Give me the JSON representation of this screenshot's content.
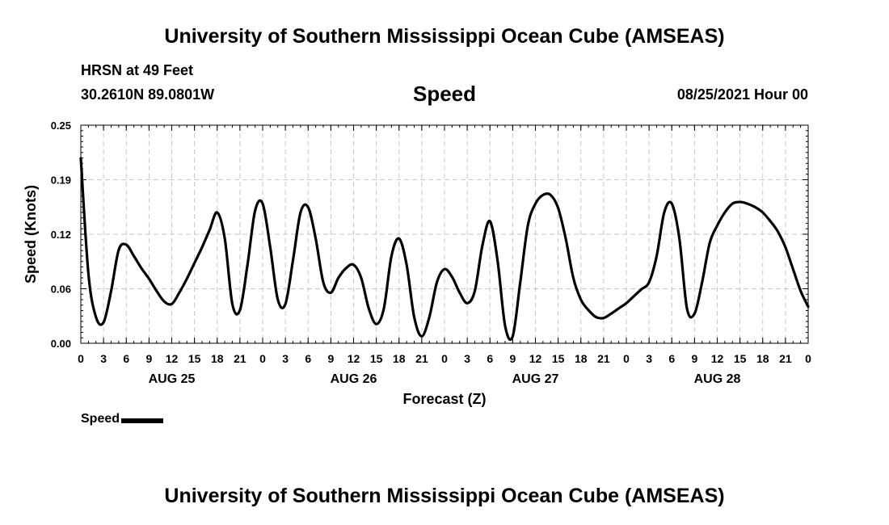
{
  "header": {
    "title": "University of Southern Mississippi Ocean Cube (AMSEAS)",
    "station": "HRSN at 49 Feet",
    "coords": "30.2610N  89.0801W",
    "datetime": "08/25/2021 Hour 00"
  },
  "footer": {
    "title": "University of Southern Mississippi Ocean Cube (AMSEAS)"
  },
  "legend": {
    "label": "Speed"
  },
  "chart_data": {
    "type": "line",
    "title": "Speed",
    "xlabel": "Forecast (Z)",
    "ylabel": "Speed (Knots)",
    "ylim": [
      0,
      0.25
    ],
    "xlim": [
      0,
      96
    ],
    "y_ticks": [
      0,
      0.0625,
      0.125,
      0.1875,
      0.25
    ],
    "y_tick_labels": [
      "0.00",
      "0.06",
      "0.12",
      "0.19",
      "0.25"
    ],
    "x_tick_hours": [
      0,
      3,
      6,
      9,
      12,
      15,
      18,
      21,
      24,
      27,
      30,
      33,
      36,
      39,
      42,
      45,
      48,
      51,
      54,
      57,
      60,
      63,
      66,
      69,
      72,
      75,
      78,
      81,
      84,
      87,
      90,
      93,
      96
    ],
    "x_tick_labels": [
      "0",
      "3",
      "6",
      "9",
      "12",
      "15",
      "18",
      "21",
      "0",
      "3",
      "6",
      "9",
      "12",
      "15",
      "18",
      "21",
      "0",
      "3",
      "6",
      "9",
      "12",
      "15",
      "18",
      "21",
      "0",
      "3",
      "6",
      "9",
      "12",
      "15",
      "18",
      "21",
      "0"
    ],
    "day_labels": [
      {
        "label": "AUG 25",
        "hour": 12
      },
      {
        "label": "AUG 26",
        "hour": 36
      },
      {
        "label": "AUG 27",
        "hour": 60
      },
      {
        "label": "AUG 28",
        "hour": 84
      }
    ],
    "grid": true,
    "series": [
      {
        "name": "Speed",
        "color": "#000000",
        "x": [
          0,
          1,
          2,
          3,
          4,
          5,
          6,
          7,
          8,
          9,
          10,
          11,
          12,
          13,
          14,
          15,
          16,
          17,
          18,
          19,
          20,
          21,
          22,
          23,
          24,
          25,
          26,
          27,
          28,
          29,
          30,
          31,
          32,
          33,
          34,
          35,
          36,
          37,
          38,
          39,
          40,
          41,
          42,
          43,
          44,
          45,
          46,
          47,
          48,
          49,
          50,
          51,
          52,
          53,
          54,
          55,
          56,
          57,
          58,
          59,
          60,
          61,
          62,
          63,
          64,
          65,
          66,
          67,
          68,
          69,
          70,
          71,
          72,
          73,
          74,
          75,
          76,
          77,
          78,
          79,
          80,
          81,
          82,
          83,
          84,
          85,
          86,
          87,
          88,
          89,
          90,
          91,
          92,
          93,
          94,
          95,
          96
        ],
        "values": [
          0.212,
          0.08,
          0.03,
          0.024,
          0.06,
          0.107,
          0.113,
          0.1,
          0.086,
          0.074,
          0.06,
          0.048,
          0.045,
          0.058,
          0.074,
          0.092,
          0.11,
          0.13,
          0.15,
          0.12,
          0.045,
          0.038,
          0.09,
          0.152,
          0.16,
          0.11,
          0.05,
          0.045,
          0.095,
          0.15,
          0.156,
          0.12,
          0.07,
          0.058,
          0.075,
          0.086,
          0.09,
          0.075,
          0.04,
          0.022,
          0.04,
          0.1,
          0.12,
          0.09,
          0.03,
          0.008,
          0.03,
          0.07,
          0.085,
          0.076,
          0.058,
          0.046,
          0.06,
          0.112,
          0.14,
          0.095,
          0.02,
          0.008,
          0.07,
          0.135,
          0.16,
          0.17,
          0.17,
          0.155,
          0.12,
          0.075,
          0.05,
          0.038,
          0.03,
          0.029,
          0.034,
          0.04,
          0.046,
          0.054,
          0.062,
          0.07,
          0.1,
          0.15,
          0.16,
          0.12,
          0.04,
          0.034,
          0.07,
          0.115,
          0.135,
          0.15,
          0.16,
          0.162,
          0.16,
          0.156,
          0.15,
          0.14,
          0.128,
          0.11,
          0.085,
          0.06,
          0.042
        ]
      }
    ]
  }
}
